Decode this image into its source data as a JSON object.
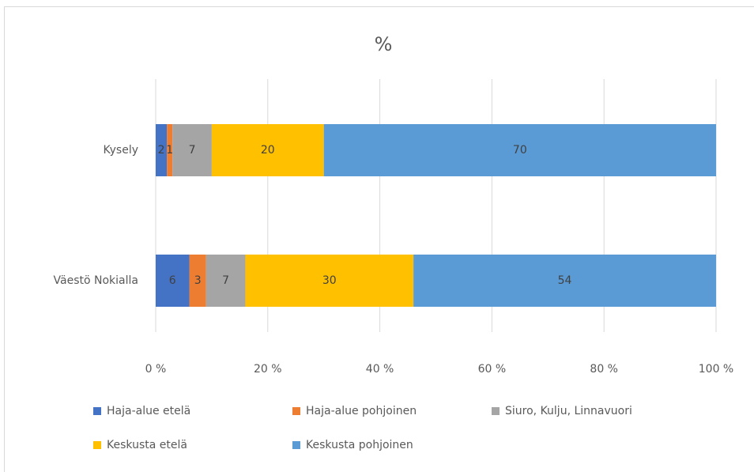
{
  "chart_data": {
    "type": "stacked-bar-horizontal",
    "title": "%",
    "categories": [
      "Kysely",
      "Väestö Nokialla"
    ],
    "series": [
      {
        "name": "Haja-alue etelä",
        "color": "#4472c4",
        "values": [
          2,
          6
        ]
      },
      {
        "name": "Haja-alue pohjoinen",
        "color": "#ed7d31",
        "values": [
          1,
          3
        ]
      },
      {
        "name": "Siuro, Kulju, Linnavuori",
        "color": "#a5a5a5",
        "values": [
          7,
          7
        ]
      },
      {
        "name": "Keskusta etelä",
        "color": "#ffc000",
        "values": [
          20,
          30
        ]
      },
      {
        "name": "Keskusta pohjoinen",
        "color": "#5b9bd5",
        "values": [
          70,
          54
        ]
      }
    ],
    "xlim": [
      0,
      100
    ],
    "xticks": [
      {
        "value": 0,
        "label": "0 %"
      },
      {
        "value": 20,
        "label": "20 %"
      },
      {
        "value": 40,
        "label": "40 %"
      },
      {
        "value": 60,
        "label": "60 %"
      },
      {
        "value": 80,
        "label": "80 %"
      },
      {
        "value": 100,
        "label": "100 %"
      }
    ],
    "grid": true,
    "legend": "bottom"
  }
}
